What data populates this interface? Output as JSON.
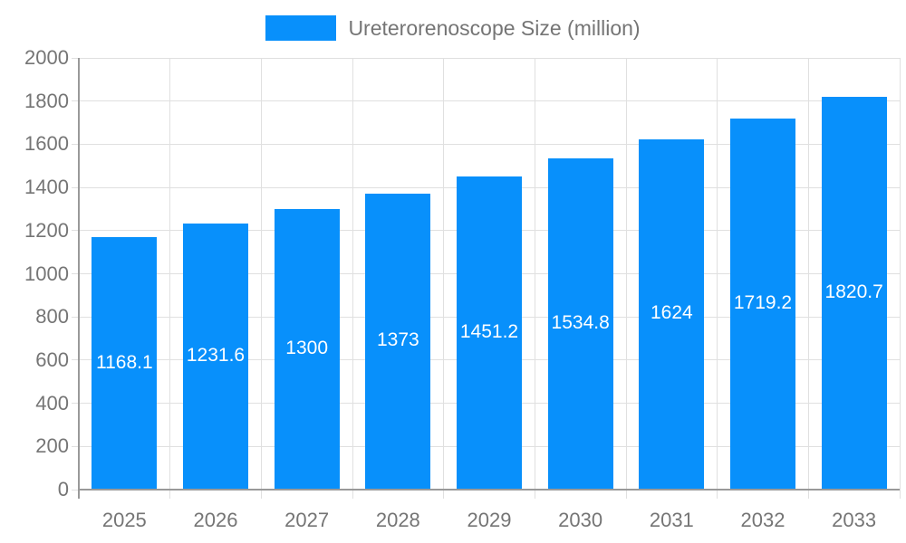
{
  "legend": {
    "label": "Ureterorenoscope Size (million)"
  },
  "chart_data": {
    "type": "bar",
    "title": "Ureterorenoscope Size (million)",
    "categories": [
      "2025",
      "2026",
      "2027",
      "2028",
      "2029",
      "2030",
      "2031",
      "2032",
      "2033"
    ],
    "values": [
      1168.1,
      1231.6,
      1300,
      1373,
      1451.2,
      1534.8,
      1624,
      1719.2,
      1820.7
    ],
    "value_labels": [
      "1168.1",
      "1231.6",
      "1300",
      "1373",
      "1451.2",
      "1534.8",
      "1624",
      "1719.2",
      "1820.7"
    ],
    "xlabel": "",
    "ylabel": "",
    "ylim": [
      0,
      2000
    ],
    "ytick_step": 200,
    "yticks": [
      0,
      200,
      400,
      600,
      800,
      1000,
      1200,
      1400,
      1600,
      1800,
      2000
    ],
    "grid": true,
    "legend_position": "top",
    "value_label_position": "inside-center",
    "colors": {
      "bar": "#0890fb",
      "grid": "#e0e0e0",
      "axis": "#999999",
      "text": "#757575",
      "value_label": "#ffffff"
    }
  }
}
